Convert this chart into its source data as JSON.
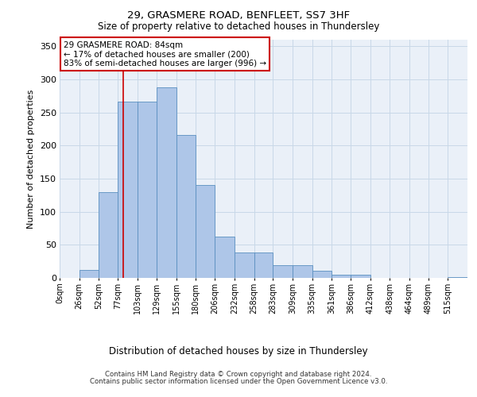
{
  "title1": "29, GRASMERE ROAD, BENFLEET, SS7 3HF",
  "title2": "Size of property relative to detached houses in Thundersley",
  "xlabel": "Distribution of detached houses by size in Thundersley",
  "ylabel": "Number of detached properties",
  "bin_labels": [
    "0sqm",
    "26sqm",
    "52sqm",
    "77sqm",
    "103sqm",
    "129sqm",
    "155sqm",
    "180sqm",
    "206sqm",
    "232sqm",
    "258sqm",
    "283sqm",
    "309sqm",
    "335sqm",
    "361sqm",
    "386sqm",
    "412sqm",
    "438sqm",
    "464sqm",
    "489sqm",
    "515sqm"
  ],
  "bin_edges": [
    0,
    26,
    52,
    77,
    103,
    129,
    155,
    180,
    206,
    232,
    258,
    283,
    309,
    335,
    361,
    386,
    412,
    438,
    464,
    489,
    515
  ],
  "bar_heights": [
    0,
    12,
    130,
    267,
    267,
    288,
    216,
    140,
    63,
    38,
    38,
    19,
    19,
    11,
    5,
    5,
    0,
    0,
    0,
    0,
    1
  ],
  "bar_color": "#aec6e8",
  "bar_edgecolor": "#5a8fc0",
  "grid_color": "#c8d8e8",
  "bg_color": "#eaf0f8",
  "red_line_x": 84,
  "annotation_text": "29 GRASMERE ROAD: 84sqm\n← 17% of detached houses are smaller (200)\n83% of semi-detached houses are larger (996) →",
  "annotation_box_color": "#ffffff",
  "annotation_border_color": "#cc0000",
  "footer1": "Contains HM Land Registry data © Crown copyright and database right 2024.",
  "footer2": "Contains public sector information licensed under the Open Government Licence v3.0.",
  "ylim": [
    0,
    360
  ],
  "yticks": [
    0,
    50,
    100,
    150,
    200,
    250,
    300,
    350
  ],
  "xlim": [
    0,
    541
  ]
}
